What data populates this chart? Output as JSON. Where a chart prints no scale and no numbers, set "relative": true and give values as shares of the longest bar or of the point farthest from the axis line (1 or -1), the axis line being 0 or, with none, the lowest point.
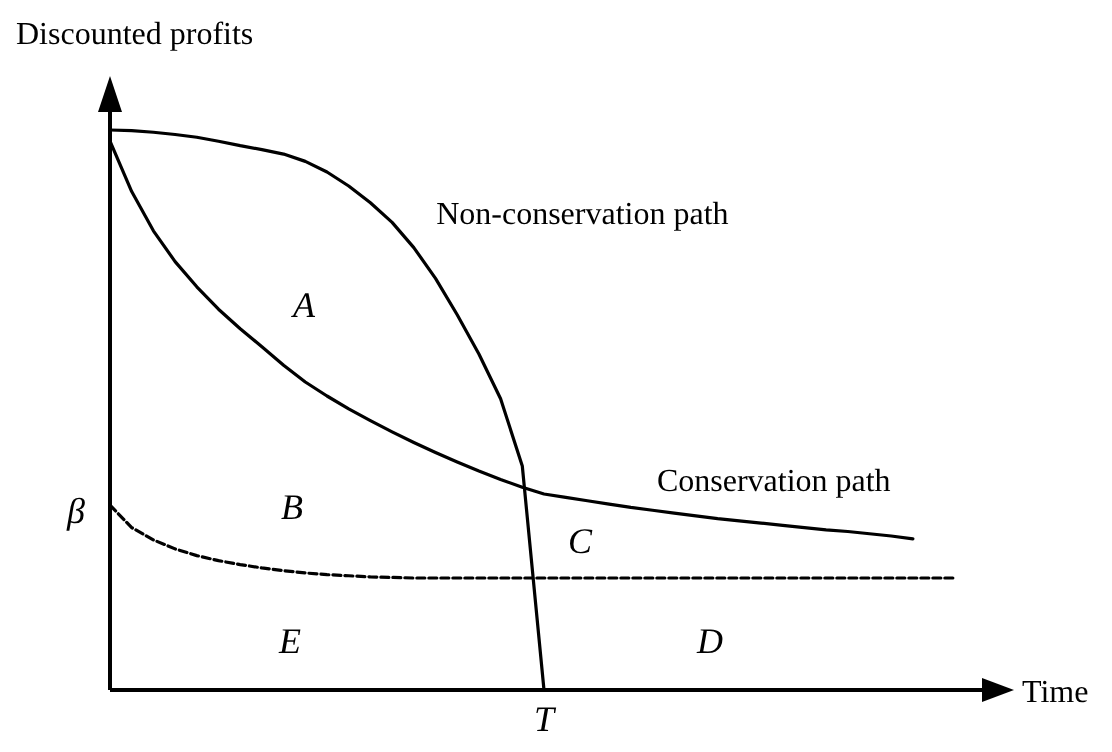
{
  "chart_data": {
    "type": "line",
    "relative": true,
    "xlabel": "Time",
    "ylabel": "Discounted profits",
    "categories": [
      null,
      null,
      null,
      null,
      null,
      null,
      null,
      null,
      null,
      null,
      null,
      null,
      null,
      null,
      null,
      null,
      null,
      null,
      null,
      null,
      null,
      null,
      null,
      null,
      null,
      null,
      null,
      null,
      null,
      null,
      null,
      null,
      null,
      null,
      null,
      null,
      null,
      null,
      null,
      null,
      null
    ],
    "series": [
      {
        "name": "Non-conservation path",
        "color": "#000000",
        "values": [
          1,
          0.999,
          0.996,
          0.992,
          0.987,
          0.98,
          0.972,
          0.965,
          0.957,
          0.944,
          0.925,
          0.9,
          0.87,
          0.835,
          0.79,
          0.735,
          0.67,
          0.6,
          0.52,
          0.4,
          0,
          null,
          null,
          null,
          null,
          null,
          null,
          null,
          null,
          null,
          null,
          null,
          null,
          null,
          null,
          null,
          null,
          null,
          null,
          null,
          null
        ]
      },
      {
        "name": "Conservation path",
        "color": "#000000",
        "values": [
          0.98,
          0.89,
          0.82,
          0.765,
          0.72,
          0.68,
          0.645,
          0.613,
          0.58,
          0.55,
          0.525,
          0.502,
          0.481,
          0.461,
          0.442,
          0.424,
          0.407,
          0.391,
          0.376,
          0.362,
          0.35,
          0.344,
          0.338,
          0.332,
          0.326,
          0.321,
          0.316,
          0.311,
          0.306,
          0.302,
          0.298,
          0.294,
          0.29,
          0.286,
          0.283,
          0.279,
          0.275,
          0.27,
          null,
          null,
          null
        ]
      },
      {
        "color": "#000000",
        "line_style": "dashed",
        "values": [
          0.33,
          0.29,
          0.268,
          0.252,
          0.24,
          0.231,
          0.224,
          0.218,
          0.213,
          0.209,
          0.206,
          0.204,
          0.202,
          0.201,
          0.2,
          0.2,
          0.2,
          0.2,
          0.2,
          0.2,
          0.2,
          0.2,
          0.2,
          0.2,
          0.2,
          0.2,
          0.2,
          0.2,
          0.2,
          0.2,
          0.2,
          0.2,
          0.2,
          0.2,
          0.2,
          0.2,
          0.2,
          0.2,
          0.2,
          0.2,
          null
        ]
      }
    ],
    "annotations": [
      "β",
      "A",
      "B",
      "C",
      "D",
      "E",
      "T"
    ]
  }
}
